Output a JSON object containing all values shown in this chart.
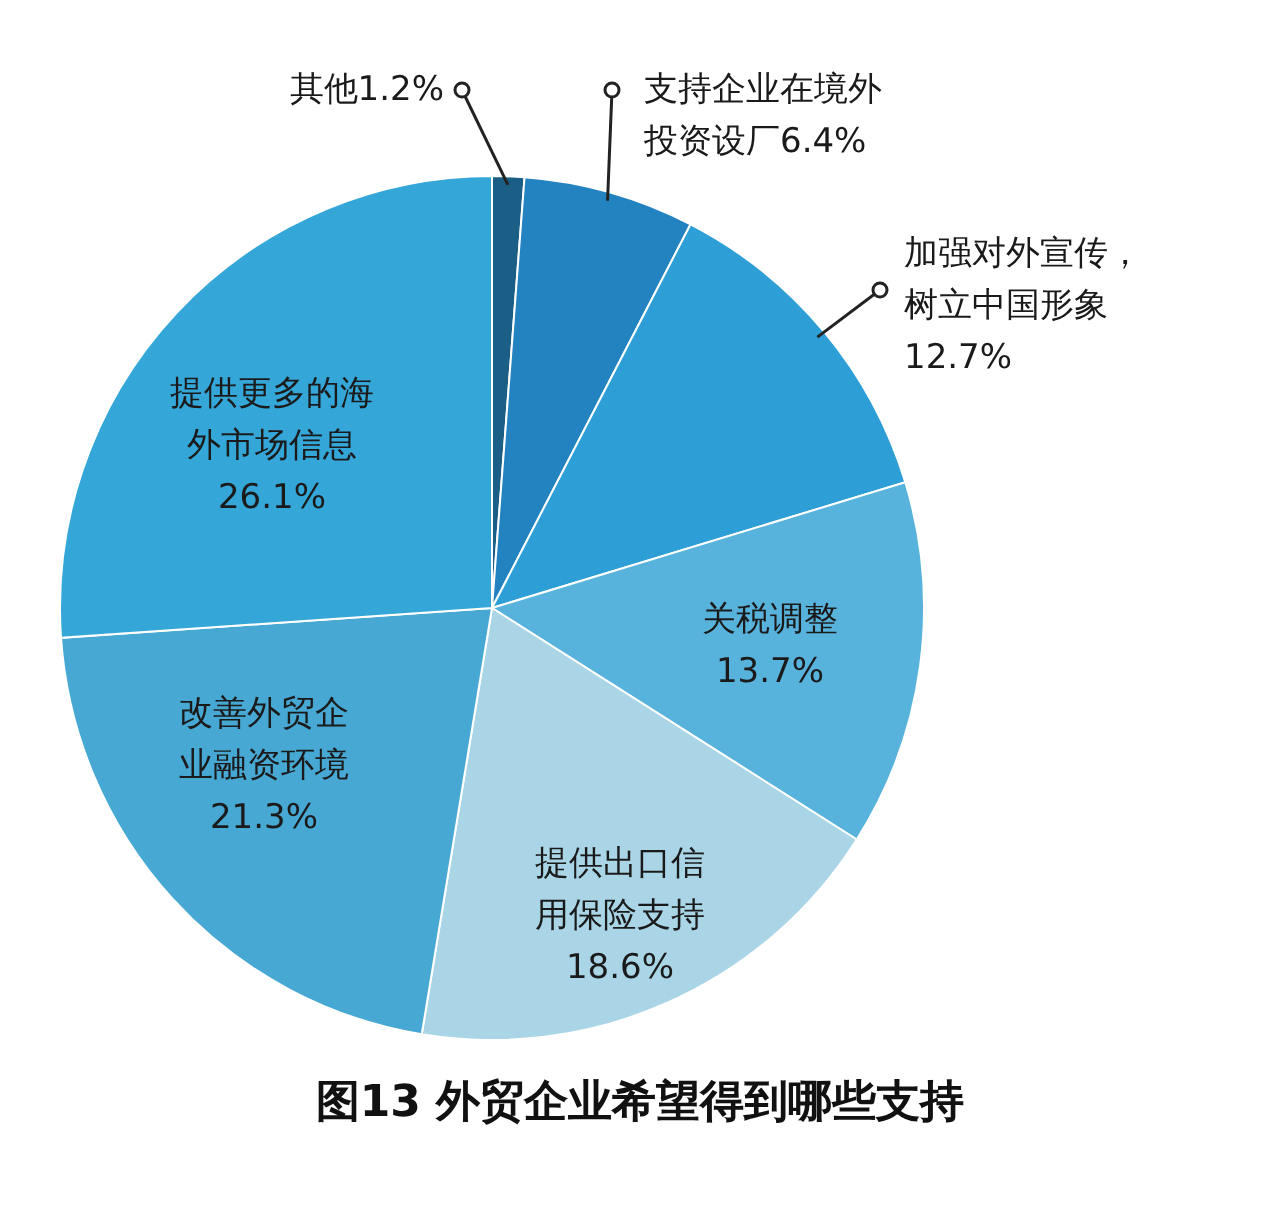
{
  "chart_data": {
    "type": "pie",
    "title": "图13  外贸企业希望得到哪些支持",
    "categories": [
      "其他",
      "支持企业在境外投资设厂",
      "加强对外宣传，树立中国形象",
      "关税调整",
      "提供出口信用保险支持",
      "改善外贸企业融资环境",
      "提供更多的海外市场信息"
    ],
    "values": [
      1.2,
      6.4,
      12.7,
      13.7,
      18.6,
      21.3,
      26.1
    ],
    "colors": [
      "#1b5f86",
      "#2383c0",
      "#2e9fd6",
      "#58b3dc",
      "#a9d5e7",
      "#47a8d3",
      "#34a6d8"
    ],
    "value_labels": [
      "1.2%",
      "6.4%",
      "12.7%",
      "13.7%",
      "18.6%",
      "21.3%",
      "26.1%"
    ],
    "legend": false
  }
}
